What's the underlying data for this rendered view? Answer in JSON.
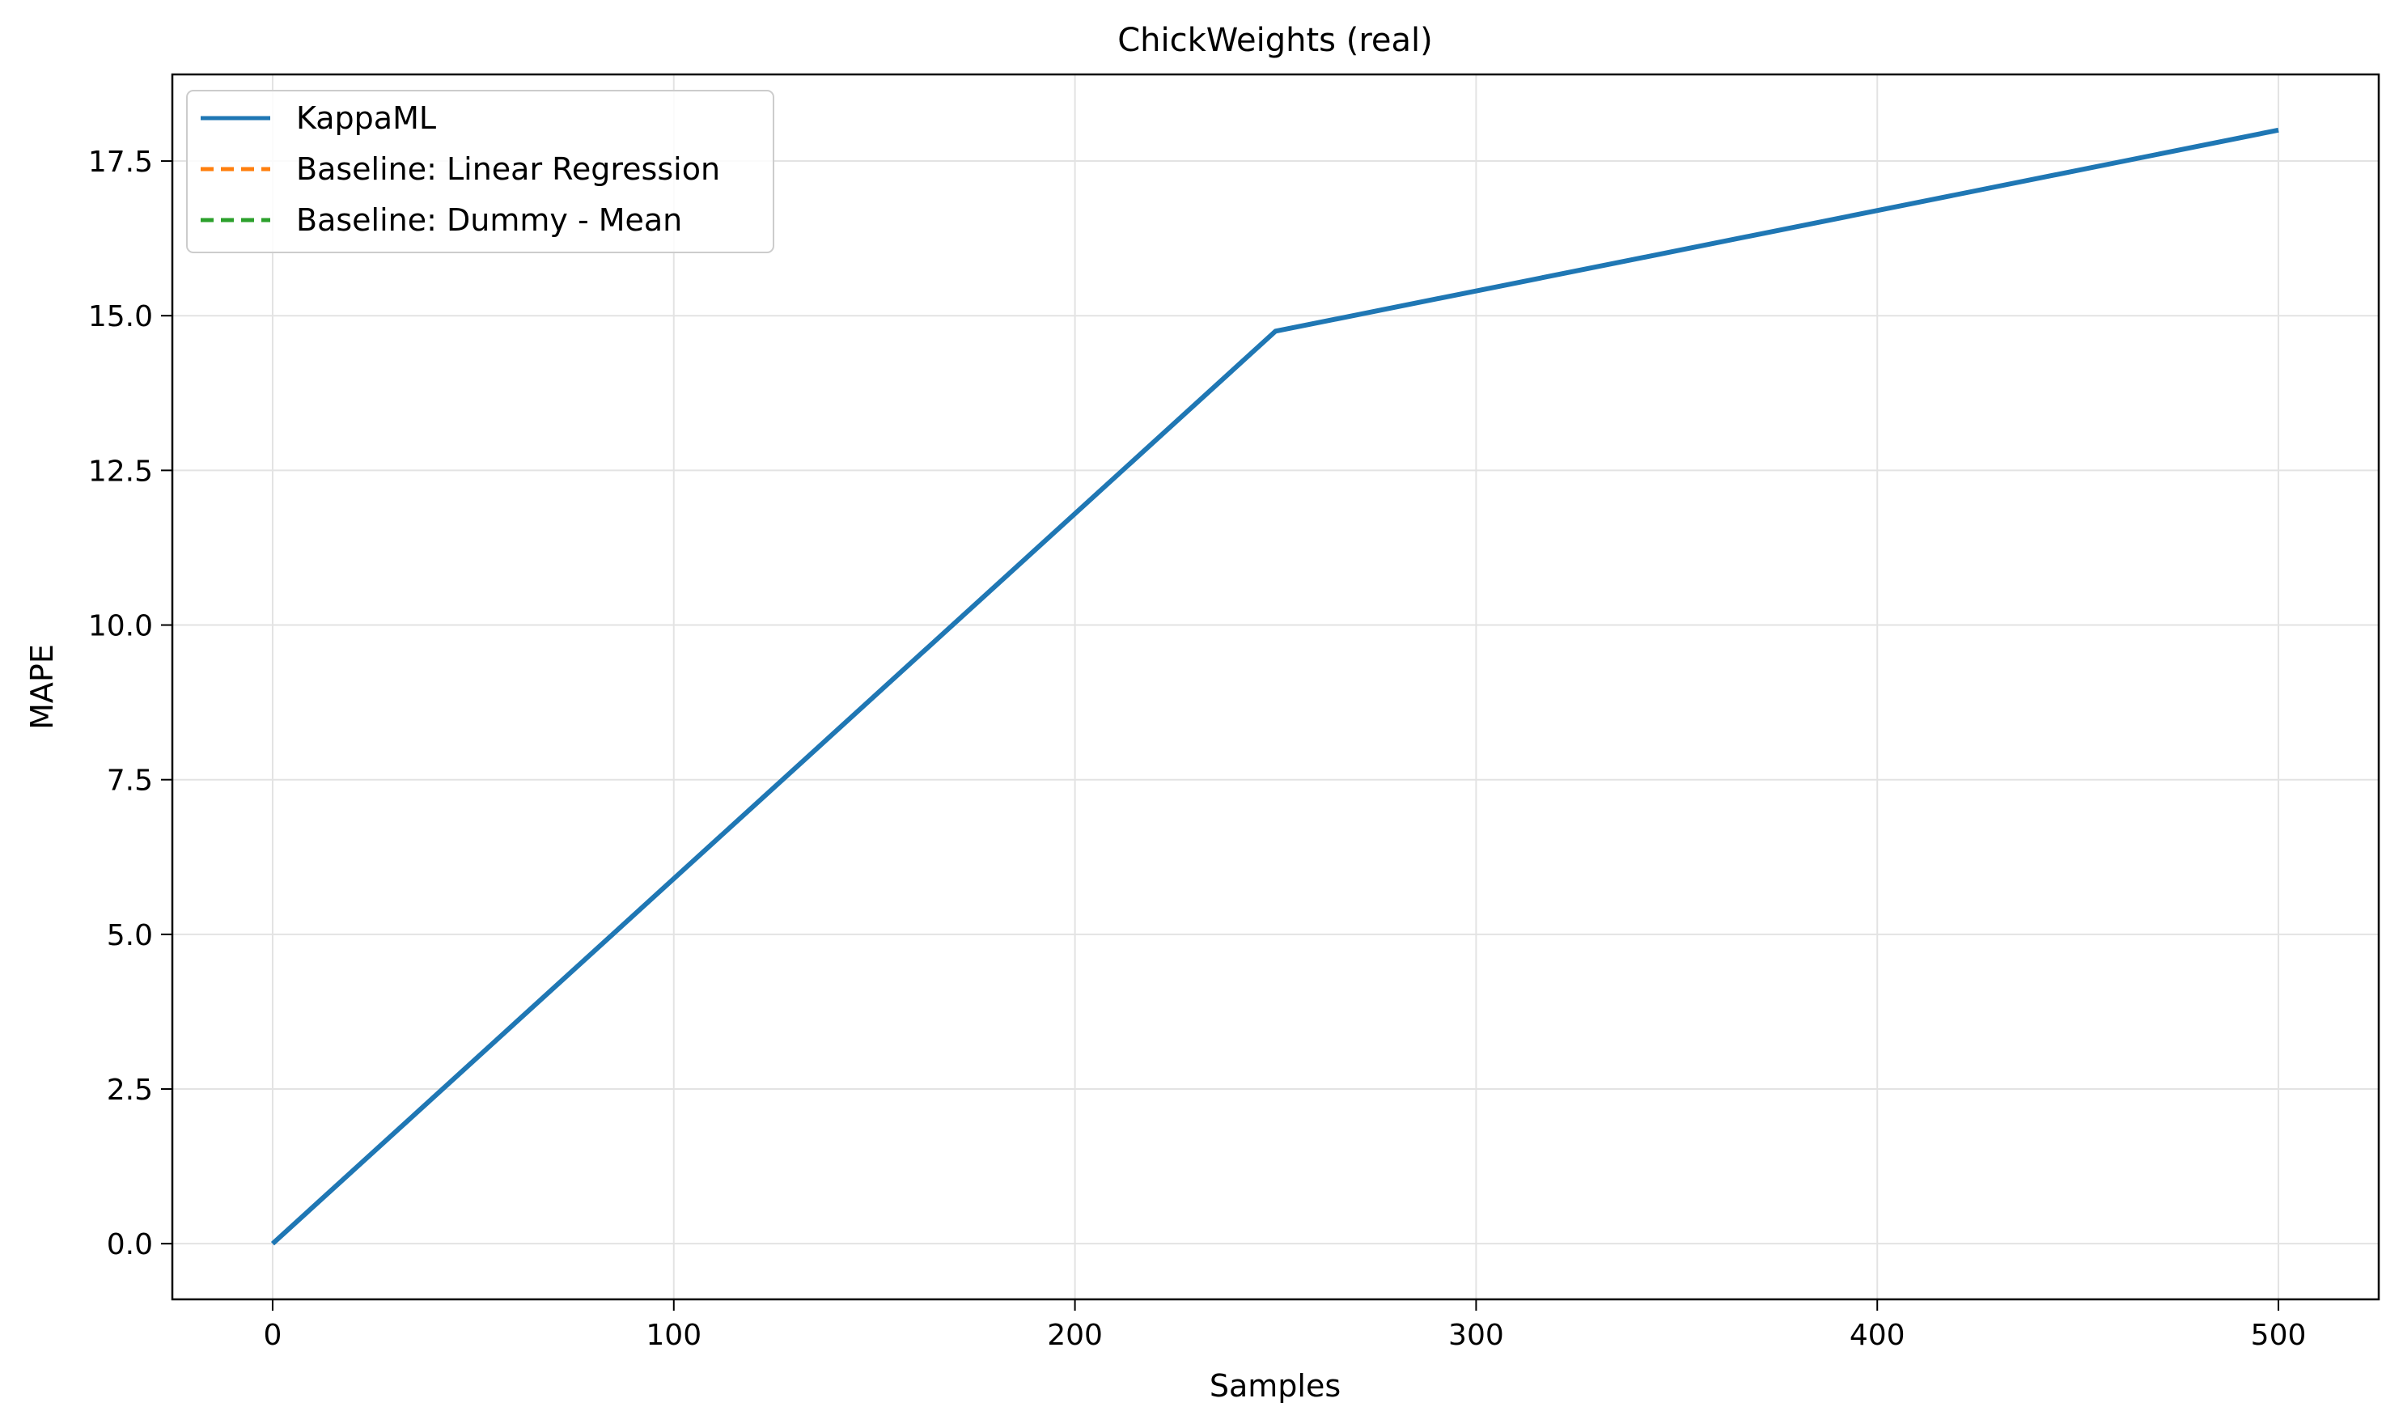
{
  "chart_data": {
    "type": "line",
    "title": "ChickWeights (real)",
    "xlabel": "Samples",
    "ylabel": "MAPE",
    "xlim": [
      -25,
      525
    ],
    "ylim": [
      -0.9,
      18.9
    ],
    "grid": true,
    "legend_position": "top-left",
    "x_ticks": [
      0,
      100,
      200,
      300,
      400,
      500
    ],
    "x_tick_labels": [
      "0",
      "100",
      "200",
      "300",
      "400",
      "500"
    ],
    "y_ticks": [
      0,
      2.5,
      5,
      7.5,
      10,
      12.5,
      15,
      17.5
    ],
    "y_tick_labels": [
      "0.0",
      "2.5",
      "5.0",
      "7.5",
      "10.0",
      "12.5",
      "15.0",
      "17.5"
    ],
    "series": [
      {
        "name": "KappaML",
        "color": "#1f77b4",
        "style": "solid",
        "x": [
          0,
          250,
          500
        ],
        "y": [
          0,
          14.75,
          18.0
        ]
      },
      {
        "name": "Baseline: Linear Regression",
        "color": "#ff7f0e",
        "style": "dashed",
        "x": [],
        "y": []
      },
      {
        "name": "Baseline: Dummy - Mean",
        "color": "#2ca02c",
        "style": "dashed",
        "x": [],
        "y": []
      }
    ]
  }
}
